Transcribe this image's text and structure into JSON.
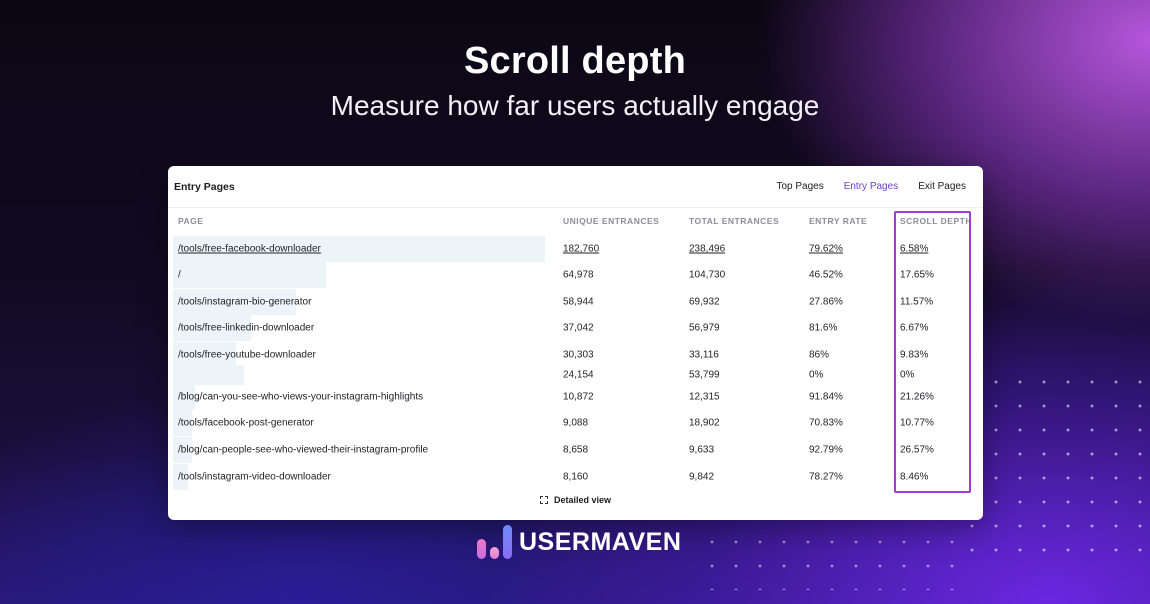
{
  "headline": "Scroll depth",
  "subhead": "Measure how far users actually engage",
  "card": {
    "title": "Entry Pages",
    "tabs": [
      "Top Pages",
      "Entry Pages",
      "Exit Pages"
    ],
    "active_tab": "Entry Pages",
    "columns": {
      "page": "PAGE",
      "unique": "UNIQUE ENTRANCES",
      "total": "TOTAL ENTRANCES",
      "rate": "ENTRY RATE",
      "scroll": "SCROLL DEPTH"
    },
    "rows": [
      {
        "page": "/tools/free-facebook-downloader",
        "unique": "182,760",
        "total": "238,496",
        "rate": "79.62%",
        "scroll": "6.58%",
        "bar_fraction": 1.0
      },
      {
        "page": "/",
        "unique": "64,978",
        "total": "104,730",
        "rate": "46.52%",
        "scroll": "17.65%",
        "bar_fraction": 0.41
      },
      {
        "page": "/tools/instagram-bio-generator",
        "unique": "58,944",
        "total": "69,932",
        "rate": "27.86%",
        "scroll": "11.57%",
        "bar_fraction": 0.33
      },
      {
        "page": "/tools/free-linkedin-downloader",
        "unique": "37,042",
        "total": "56,979",
        "rate": "81.6%",
        "scroll": "6.67%",
        "bar_fraction": 0.21
      },
      {
        "page": "/tools/free-youtube-downloader",
        "unique": "30,303",
        "total": "33,116",
        "rate": "86%",
        "scroll": "9.83%",
        "bar_fraction": 0.17
      },
      {
        "page": "",
        "unique": "24,154",
        "total": "53,799",
        "rate": "0%",
        "scroll": "0%",
        "bar_fraction": 0.19
      },
      {
        "page": "/blog/can-you-see-who-views-your-instagram-highlights",
        "unique": "10,872",
        "total": "12,315",
        "rate": "91.84%",
        "scroll": "21.26%",
        "bar_fraction": 0.06
      },
      {
        "page": "/tools/facebook-post-generator",
        "unique": "9,088",
        "total": "18,902",
        "rate": "70.83%",
        "scroll": "10.77%",
        "bar_fraction": 0.05
      },
      {
        "page": "/blog/can-people-see-who-viewed-their-instagram-profile",
        "unique": "8,658",
        "total": "9,633",
        "rate": "92.79%",
        "scroll": "26.57%",
        "bar_fraction": 0.05
      },
      {
        "page": "/tools/instagram-video-downloader",
        "unique": "8,160",
        "total": "9,842",
        "rate": "78.27%",
        "scroll": "8.46%",
        "bar_fraction": 0.04
      }
    ],
    "detailed_view": "Detailed view"
  },
  "brand": {
    "name": "USERMAVEN",
    "icon": "usermaven-bars-icon"
  },
  "colors": {
    "accent": "#6d3fc9",
    "highlight": "#a33ad6",
    "bar": "#edf4f8"
  }
}
